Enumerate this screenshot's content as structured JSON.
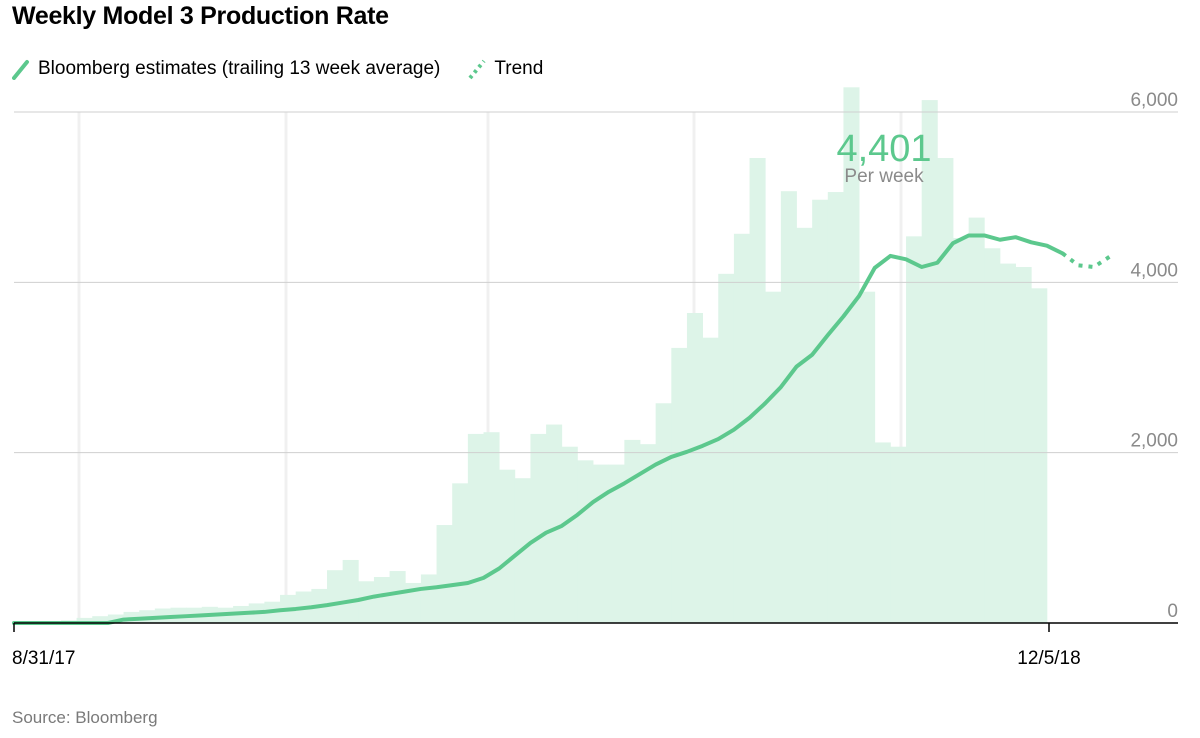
{
  "title": "Weekly Model 3 Production Rate",
  "source": "Source: Bloomberg",
  "colors": {
    "line": "#5cc88d",
    "bar": "#ddf4e8",
    "label": "#5cc88d",
    "grid": "#cfcfcf",
    "axis_text": "#8a8a8a"
  },
  "legend": [
    {
      "name": "Bloomberg estimates (trailing 13 week average)",
      "style": "solid"
    },
    {
      "name": "Trend",
      "style": "dotted"
    }
  ],
  "annotation": {
    "value": "4,401",
    "unit": "Per week"
  },
  "chart_data": {
    "type": "bar",
    "title": "Weekly Model 3 Production Rate",
    "x_tick_labels": [
      "8/31/17",
      "12/5/18"
    ],
    "y_tick_labels": [
      "0",
      "2,000",
      "4,000",
      "6,000"
    ],
    "y_ticks": [
      0,
      2000,
      4000,
      6000
    ],
    "ylim": [
      0,
      6000
    ],
    "grid": true,
    "legend_position": "top-left",
    "y_axis_side": "right",
    "bars": [
      0,
      10,
      20,
      30,
      60,
      80,
      100,
      130,
      150,
      170,
      180,
      180,
      190,
      180,
      200,
      230,
      250,
      330,
      370,
      400,
      620,
      740,
      490,
      540,
      610,
      470,
      570,
      1150,
      1640,
      2220,
      2240,
      1800,
      1700,
      2220,
      2330,
      2070,
      1910,
      1860,
      1860,
      2150,
      2100,
      2580,
      3230,
      3640,
      3350,
      4100,
      4570,
      5460,
      3890,
      5070,
      4640,
      4970,
      5060,
      6290,
      3890,
      2120,
      2070,
      4540,
      6140,
      5460,
      4520,
      4760,
      4400,
      4220,
      4180,
      3930
    ],
    "series": [
      {
        "name": "Bloomberg estimates (trailing 13 week average)",
        "style": "solid",
        "values": [
          0,
          0,
          0,
          0,
          0,
          0,
          0,
          40,
          50,
          60,
          70,
          80,
          90,
          100,
          110,
          120,
          130,
          150,
          165,
          185,
          210,
          240,
          270,
          310,
          340,
          370,
          400,
          420,
          445,
          470,
          530,
          640,
          790,
          940,
          1060,
          1140,
          1270,
          1420,
          1540,
          1640,
          1750,
          1860,
          1950,
          2010,
          2080,
          2160,
          2270,
          2410,
          2580,
          2770,
          3010,
          3150,
          3380,
          3600,
          3840,
          4170,
          4310,
          4270,
          4180,
          4230,
          4460,
          4550,
          4550,
          4500,
          4530,
          4470,
          4430,
          4340
        ]
      },
      {
        "name": "Trend",
        "style": "dotted",
        "x_start": 67,
        "values": [
          4340,
          4200,
          4180,
          4300
        ]
      }
    ]
  }
}
